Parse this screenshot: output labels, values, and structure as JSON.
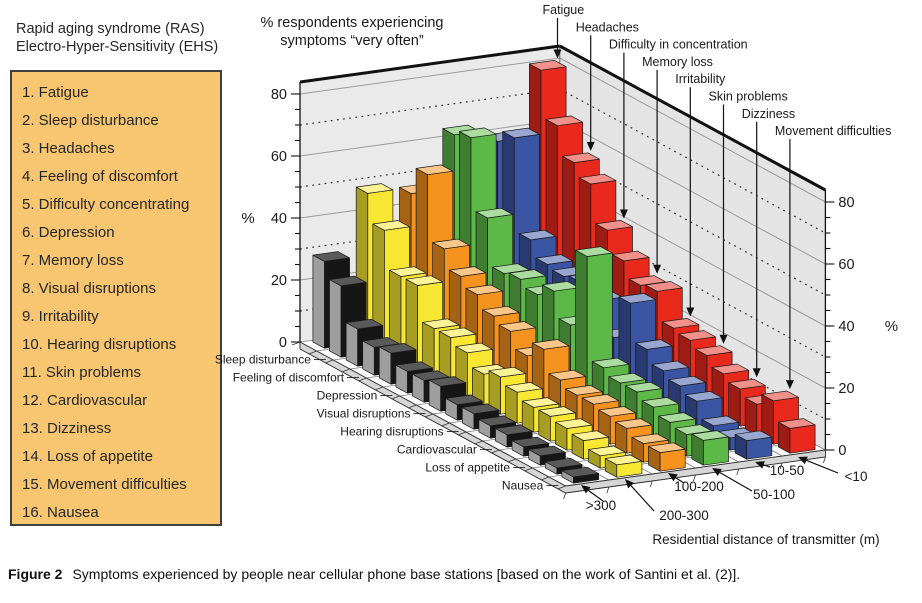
{
  "header": {
    "line1": "Rapid aging syndrome (RAS)",
    "line2": "Electro-Hyper-Sensitivity (EHS)"
  },
  "legend": {
    "items": [
      "1. Fatigue",
      "2. Sleep disturbance",
      "3. Headaches",
      "4. Feeling of discomfort",
      "5. Difficulty concentrating",
      "6. Depression",
      "7. Memory loss",
      "8. Visual disruptions",
      "9. Irritability",
      "10. Hearing disruptions",
      "11. Skin problems",
      "12. Cardiovascular",
      "13. Dizziness",
      "14. Loss of appetite",
      "15. Movement difficulties",
      "16. Nausea"
    ],
    "box_color": "#f8c671"
  },
  "chart_data": {
    "type": "bar",
    "projection": "3d-column",
    "title_line1": "% respondents experiencing",
    "title_line2": "symptoms “very often”",
    "value_axis": {
      "label": "%",
      "min": 0,
      "max": 80,
      "major_ticks": [
        0,
        20,
        40,
        60,
        80
      ],
      "minor_tick_step": 5,
      "grid": "solid at 20s, dotted at 10s",
      "shown_on": "left and right"
    },
    "distance_axis": {
      "label": "Residential distance of transmitter (m)",
      "categories": [
        ">300",
        "200-300",
        "100-200",
        "50-100",
        "10-50",
        "<10"
      ],
      "colors": [
        "#161616",
        "#f7e733",
        "#f6921e",
        "#5cb947",
        "#3b55a5",
        "#e8291c"
      ]
    },
    "symptom_top_labels": [
      "Fatigue",
      "Headaches",
      "Difficulty in concentration",
      "Memory loss",
      "Irritability",
      "Skin problems",
      "Dizziness",
      "Movement difficulties"
    ],
    "symptom_side_labels": [
      "Sleep disturbance",
      "Feeling of discomfort",
      "Depression",
      "Visual disruptions",
      "Hearing disruptions",
      "Cardiovascular",
      "Loss of appetite",
      "Nausea"
    ],
    "series": [
      {
        "name": "Fatigue",
        "values": [
          28,
          48,
          46,
          63,
          59,
          80
        ]
      },
      {
        "name": "Sleep disturbance",
        "values": [
          23,
          39,
          55,
          65,
          63,
          65
        ]
      },
      {
        "name": "Headaches",
        "values": [
          12,
          27,
          34,
          42,
          33,
          56
        ]
      },
      {
        "name": "Feeling of discomfort",
        "values": [
          9,
          27,
          28,
          27,
          28,
          52
        ]
      },
      {
        "name": "Difficulty in concentration",
        "values": [
          10,
          16,
          25,
          28,
          27,
          40
        ]
      },
      {
        "name": "Depression",
        "values": [
          7,
          16,
          21,
          26,
          28,
          33
        ]
      },
      {
        "name": "Memory loss",
        "values": [
          7,
          14,
          19,
          30,
          25,
          28
        ]
      },
      {
        "name": "Visual disruptions",
        "values": [
          8,
          10,
          14,
          22,
          16,
          29
        ]
      },
      {
        "name": "Irritability",
        "values": [
          5,
          12,
          19,
          47,
          30,
          20
        ]
      },
      {
        "name": "Hearing disruptions",
        "values": [
          5,
          10,
          12,
          14,
          18,
          19
        ]
      },
      {
        "name": "Skin problems",
        "values": [
          4,
          8,
          10,
          12,
          14,
          17
        ]
      },
      {
        "name": "Cardiovascular",
        "values": [
          4,
          8,
          10,
          12,
          12,
          14
        ]
      },
      {
        "name": "Dizziness",
        "values": [
          3,
          7,
          9,
          10,
          10,
          12
        ]
      },
      {
        "name": "Loss of appetite",
        "values": [
          3,
          6,
          8,
          8,
          5,
          10
        ]
      },
      {
        "name": "Movement difficulties",
        "values": [
          2,
          4,
          6,
          7,
          4,
          14
        ]
      },
      {
        "name": "Nausea",
        "values": [
          2,
          4,
          6,
          8,
          6,
          8
        ]
      }
    ]
  },
  "caption": {
    "tag": "Figure 2",
    "text": "Symptoms experienced by people near cellular phone base stations [based on the work of Santini et al. (2)]."
  }
}
